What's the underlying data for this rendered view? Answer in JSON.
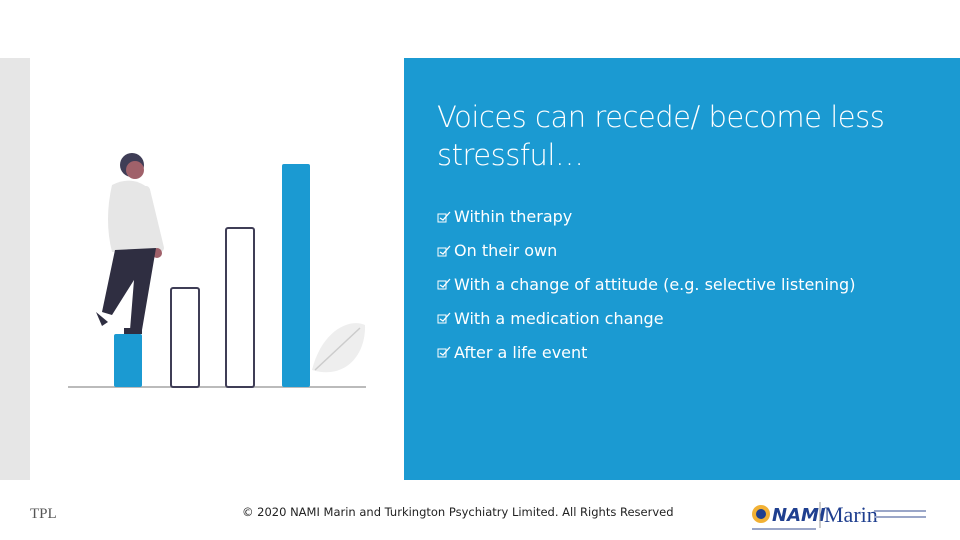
{
  "slide": {
    "title": "Voices can recede/ become less stressful…",
    "bullets": [
      "Within therapy",
      "On their own",
      "With a change of attitude (e.g. selective listening)",
      "With a medication change",
      "After a life event"
    ],
    "footer": {
      "left": "TPL",
      "center": "© 2020 NAMI Marin and Turkington Psychiatry Limited.  All Rights Reserved"
    },
    "logo": {
      "brand": "NAMI",
      "place": "Marin"
    }
  }
}
